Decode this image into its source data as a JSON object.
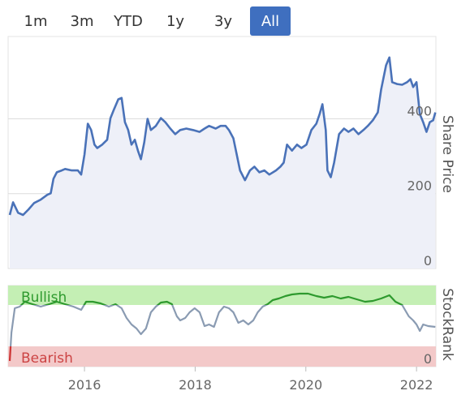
{
  "range_buttons": {
    "labels": [
      "1m",
      "3m",
      "YTD",
      "1y",
      "3y",
      "All"
    ],
    "selected": "All"
  },
  "chart_data": [
    {
      "type": "line",
      "y_label": "Share Price",
      "x": [
        2014.65,
        2014.71,
        2014.8,
        2014.89,
        2014.99,
        2015.09,
        2015.21,
        2015.33,
        2015.39,
        2015.44,
        2015.5,
        2015.59,
        2015.65,
        2015.77,
        2015.88,
        2015.94,
        2016.0,
        2016.06,
        2016.12,
        2016.18,
        2016.23,
        2016.32,
        2016.41,
        2016.47,
        2016.53,
        2016.61,
        2016.67,
        2016.73,
        2016.79,
        2016.85,
        2016.91,
        2016.97,
        2017.02,
        2017.08,
        2017.14,
        2017.2,
        2017.29,
        2017.38,
        2017.46,
        2017.55,
        2017.64,
        2017.73,
        2017.84,
        2017.96,
        2018.08,
        2018.17,
        2018.25,
        2018.37,
        2018.46,
        2018.55,
        2018.61,
        2018.69,
        2018.75,
        2018.81,
        2018.9,
        2018.99,
        2019.07,
        2019.16,
        2019.25,
        2019.34,
        2019.46,
        2019.54,
        2019.6,
        2019.66,
        2019.75,
        2019.84,
        2019.92,
        2020.01,
        2020.1,
        2020.19,
        2020.25,
        2020.3,
        2020.36,
        2020.39,
        2020.45,
        2020.51,
        2020.6,
        2020.69,
        2020.77,
        2020.86,
        2020.95,
        2021.04,
        2021.12,
        2021.21,
        2021.3,
        2021.36,
        2021.45,
        2021.51,
        2021.56,
        2021.65,
        2021.74,
        2021.83,
        2021.89,
        2021.94,
        2022.0,
        2022.06,
        2022.12,
        2022.18,
        2022.24,
        2022.3,
        2022.34
      ],
      "series": [
        {
          "color": "#4a72b8",
          "values": [
            143,
            177,
            149,
            143,
            158,
            175,
            184,
            197,
            201,
            240,
            257,
            262,
            266,
            262,
            262,
            251,
            305,
            387,
            370,
            331,
            322,
            331,
            344,
            402,
            424,
            452,
            456,
            391,
            370,
            331,
            344,
            313,
            292,
            337,
            400,
            370,
            381,
            402,
            391,
            374,
            359,
            370,
            374,
            370,
            365,
            374,
            381,
            374,
            381,
            381,
            370,
            348,
            305,
            262,
            236,
            262,
            272,
            257,
            262,
            251,
            262,
            272,
            283,
            331,
            315,
            331,
            322,
            331,
            370,
            387,
            413,
            439,
            370,
            262,
            244,
            283,
            359,
            374,
            365,
            374,
            359,
            370,
            381,
            396,
            417,
            478,
            543,
            564,
            498,
            493,
            491,
            498,
            506,
            485,
            498,
            413,
            391,
            365,
            391,
            396,
            417
          ]
        }
      ],
      "xlim": [
        2014.62,
        2022.35
      ],
      "ylim": [
        0,
        620
      ],
      "yticks": [
        0,
        200,
        400
      ],
      "grid": true,
      "area_color": "#eef0f8"
    },
    {
      "type": "line",
      "y_label": "StockRank",
      "x": [
        2014.65,
        2014.68,
        2014.74,
        2014.83,
        2014.92,
        2015.06,
        2015.21,
        2015.36,
        2015.5,
        2015.65,
        2015.8,
        2015.94,
        2016.03,
        2016.15,
        2016.29,
        2016.44,
        2016.56,
        2016.67,
        2016.76,
        2016.85,
        2016.94,
        2017.02,
        2017.11,
        2017.2,
        2017.29,
        2017.38,
        2017.49,
        2017.58,
        2017.67,
        2017.73,
        2017.82,
        2017.9,
        2017.99,
        2018.08,
        2018.17,
        2018.25,
        2018.34,
        2018.43,
        2018.52,
        2018.61,
        2018.69,
        2018.78,
        2018.87,
        2018.96,
        2019.05,
        2019.13,
        2019.22,
        2019.31,
        2019.4,
        2019.51,
        2019.63,
        2019.75,
        2019.89,
        2020.04,
        2020.19,
        2020.33,
        2020.48,
        2020.63,
        2020.77,
        2020.92,
        2021.07,
        2021.21,
        2021.36,
        2021.51,
        2021.62,
        2021.74,
        2021.86,
        2021.94,
        2022.0,
        2022.06,
        2022.12,
        2022.21,
        2022.34
      ],
      "series": [
        {
          "color": "#8a9bb2",
          "values": [
            7,
            42,
            72,
            74,
            80,
            77,
            74,
            77,
            80,
            77,
            74,
            70,
            80,
            80,
            78,
            74,
            77,
            72,
            60,
            52,
            47,
            40,
            47,
            67,
            74,
            79,
            80,
            77,
            62,
            57,
            60,
            67,
            72,
            67,
            50,
            52,
            49,
            67,
            74,
            72,
            67,
            54,
            57,
            52,
            57,
            67,
            74,
            77,
            82,
            84,
            87,
            89,
            90,
            90,
            87,
            85,
            87,
            84,
            86,
            83,
            80,
            81,
            84,
            88,
            80,
            76,
            62,
            57,
            52,
            44,
            52,
            50,
            49
          ]
        }
      ],
      "bands": [
        {
          "label": "Bullish",
          "from": 76,
          "to": 100,
          "color": "#c4efb4",
          "line_color": "#2e9a2e",
          "text_color": "#2e9a2e"
        },
        {
          "label": "Bearish",
          "from": 0,
          "to": 25,
          "color": "#f3c9c9",
          "line_color": "#cc3333",
          "text_color": "#cc4444"
        }
      ],
      "xlim": [
        2014.62,
        2022.35
      ],
      "ylim": [
        0,
        100
      ],
      "yticks": [
        0
      ],
      "xticks": [
        2016,
        2018,
        2020,
        2022
      ]
    }
  ]
}
